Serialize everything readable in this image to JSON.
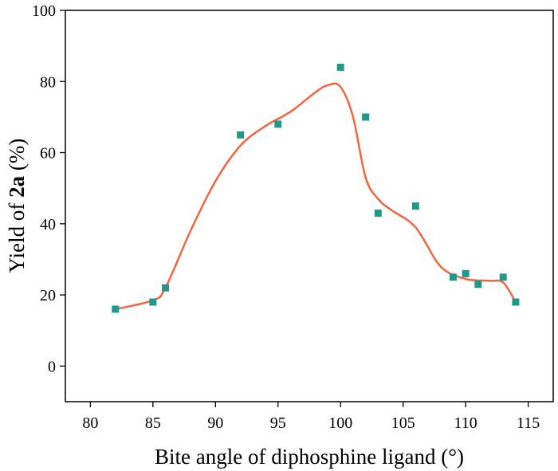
{
  "chart_data": {
    "type": "scatter",
    "xlabel": "Bite angle of diphosphine ligand (°)",
    "ylabel_prefix": "Yield of ",
    "ylabel_compound": "2a",
    "ylabel_suffix": " (%)",
    "xlim": [
      78,
      117
    ],
    "ylim": [
      -10,
      100
    ],
    "xticks": [
      80,
      85,
      90,
      95,
      100,
      105,
      110,
      115
    ],
    "yticks": [
      0,
      20,
      40,
      60,
      80,
      100
    ],
    "grid": false,
    "legend": "none",
    "series": [
      {
        "marker": "square",
        "color": "#1f9a8a",
        "x": [
          82,
          85,
          86,
          92,
          95,
          100,
          102,
          103,
          106,
          109,
          110,
          111,
          113,
          114
        ],
        "y": [
          16,
          18,
          22,
          65,
          68,
          84,
          70,
          43,
          45,
          25,
          26,
          23,
          25,
          18
        ]
      }
    ],
    "fit_curve": {
      "color": "#f26540",
      "x": [
        82,
        85,
        86,
        88,
        90,
        92,
        94,
        96,
        98,
        99,
        100,
        101,
        102,
        103,
        104,
        106,
        108,
        110,
        112,
        113,
        114
      ],
      "y": [
        16,
        18.5,
        22,
        38,
        52,
        62,
        67.5,
        71.5,
        77,
        79,
        78.5,
        70,
        53,
        47,
        44,
        39,
        28,
        24.5,
        24,
        23.5,
        18
      ]
    }
  }
}
